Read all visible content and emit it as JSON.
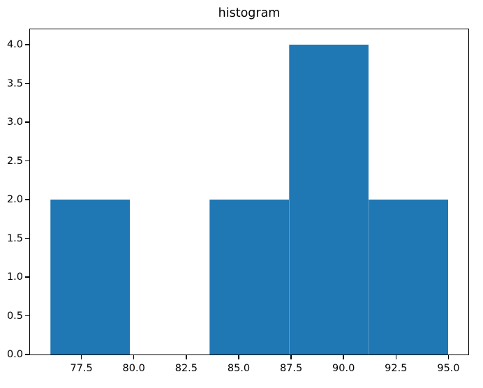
{
  "chart_data": {
    "type": "bar",
    "subtype": "histogram",
    "title": "histogram",
    "xlabel": "",
    "ylabel": "",
    "bar_color": "#1f77b4",
    "axis_color": "#000000",
    "background_color": "#ffffff",
    "grid": false,
    "legend": null,
    "bin_edges": [
      76.0,
      79.8,
      83.6,
      87.4,
      91.2,
      95.0
    ],
    "counts": [
      2,
      0,
      2,
      4,
      2
    ],
    "xlim": [
      75.05,
      95.95
    ],
    "ylim": [
      0,
      4.2
    ],
    "xticks": [
      77.5,
      80.0,
      82.5,
      85.0,
      87.5,
      90.0,
      92.5,
      95.0
    ],
    "xtick_labels": [
      "77.5",
      "80.0",
      "82.5",
      "85.0",
      "87.5",
      "90.0",
      "92.5",
      "95.0"
    ],
    "yticks": [
      0.0,
      0.5,
      1.0,
      1.5,
      2.0,
      2.5,
      3.0,
      3.5,
      4.0
    ],
    "ytick_labels": [
      "0.0",
      "0.5",
      "1.0",
      "1.5",
      "2.0",
      "2.5",
      "3.0",
      "3.5",
      "4.0"
    ]
  }
}
